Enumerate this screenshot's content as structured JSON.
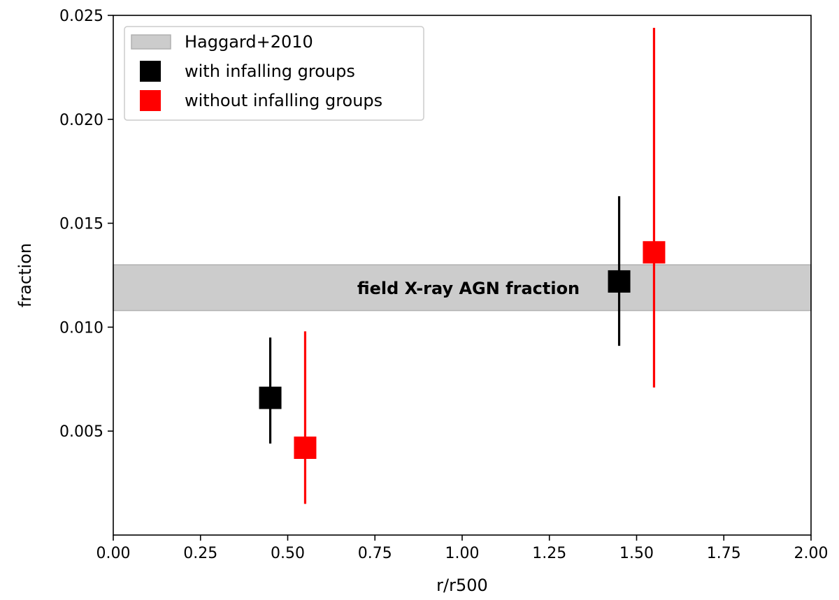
{
  "chart_data": {
    "type": "scatter",
    "xlabel": "r/r500",
    "ylabel": "fraction",
    "xlim": [
      0.0,
      2.0
    ],
    "ylim": [
      0.0,
      0.025
    ],
    "x_ticks": [
      "0.00",
      "0.25",
      "0.50",
      "0.75",
      "1.00",
      "1.25",
      "1.50",
      "1.75",
      "2.00"
    ],
    "y_ticks": [
      "0.005",
      "0.010",
      "0.015",
      "0.020",
      "0.025"
    ],
    "band": {
      "name": "Haggard+2010",
      "y_low": 0.0108,
      "y_high": 0.013,
      "color": "#cccccc",
      "annotation": "field X-ray AGN fraction"
    },
    "series": [
      {
        "name": "with infalling groups",
        "color": "#000000",
        "points": [
          {
            "x": 0.45,
            "y": 0.0066,
            "y_low": 0.0044,
            "y_high": 0.0095
          },
          {
            "x": 1.45,
            "y": 0.0122,
            "y_low": 0.0091,
            "y_high": 0.0163
          }
        ]
      },
      {
        "name": "without infalling groups",
        "color": "#ff0000",
        "points": [
          {
            "x": 0.55,
            "y": 0.0042,
            "y_low": 0.0015,
            "y_high": 0.0098
          },
          {
            "x": 1.55,
            "y": 0.0136,
            "y_low": 0.0071,
            "y_high": 0.0244
          }
        ]
      }
    ],
    "legend": {
      "position": "top-left",
      "entries": [
        "Haggard+2010",
        "with infalling groups",
        "without infalling groups"
      ]
    }
  }
}
